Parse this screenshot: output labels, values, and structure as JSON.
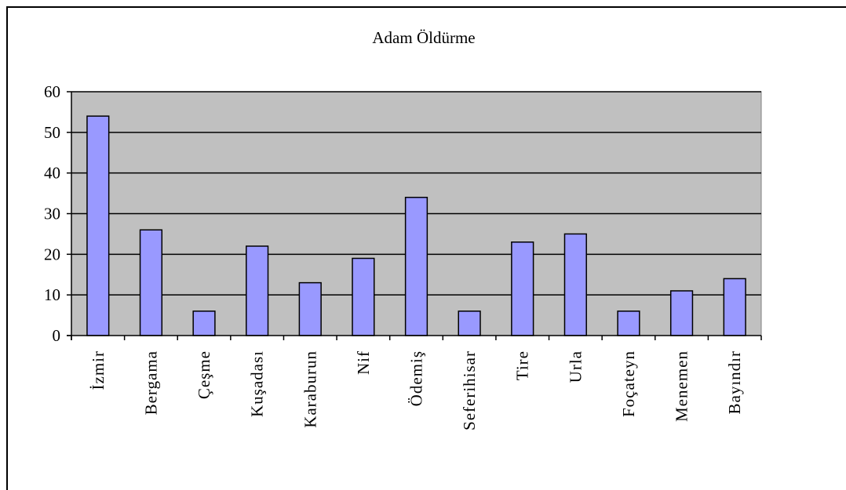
{
  "chart_data": {
    "type": "bar",
    "title": "Adam Öldürme",
    "xlabel": "",
    "ylabel": "",
    "ylim": [
      0,
      60
    ],
    "yticks": [
      "0",
      "10",
      "20",
      "30",
      "40",
      "50",
      "60"
    ],
    "grid": true,
    "legend": "none",
    "categories": [
      "İzmir",
      "Bergama",
      "Çeşme",
      "Kuşadası",
      "Karaburun",
      "Nif",
      "Ödemiş",
      "Seferihisar",
      "Tire",
      "Urla",
      "Foçateyn",
      "Menemen",
      "Bayındır"
    ],
    "values": [
      54,
      26,
      6,
      22,
      13,
      19,
      34,
      6,
      23,
      25,
      6,
      11,
      14
    ],
    "colors": {
      "bar_fill": "#9999ff",
      "bar_stroke": "#000000",
      "plot_background": "#c0c0c0",
      "gridline": "#000000"
    }
  }
}
